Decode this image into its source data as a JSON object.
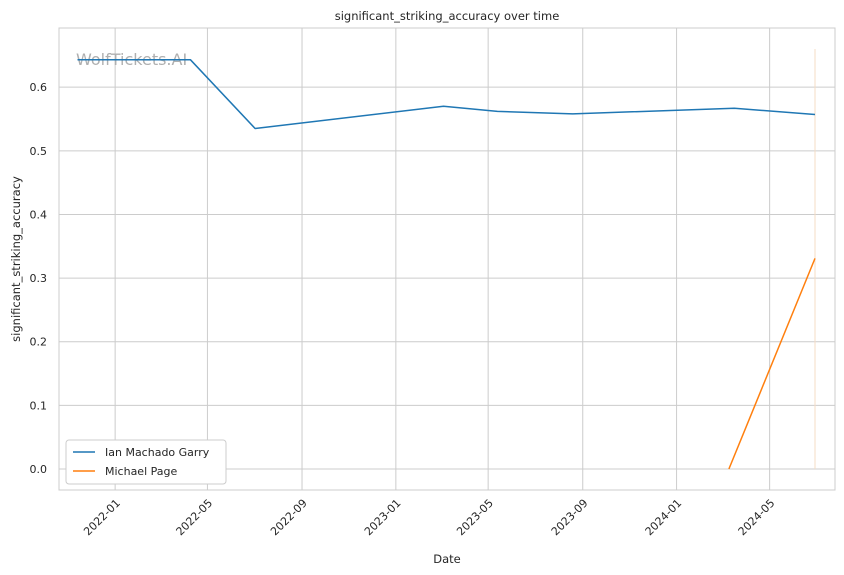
{
  "chart_data": {
    "type": "line",
    "title": "significant_striking_accuracy over time",
    "xlabel": "Date",
    "ylabel": "significant_striking_accuracy",
    "watermark": "WolfTickets.AI",
    "grid": true,
    "legend_position": "lower-left",
    "x_ticks": [
      "2022-01",
      "2022-05",
      "2022-09",
      "2023-01",
      "2023-05",
      "2023-09",
      "2024-01",
      "2024-05"
    ],
    "y_ticks": [
      "0.0",
      "0.1",
      "0.2",
      "0.3",
      "0.4",
      "0.5",
      "0.6"
    ],
    "xlim": [
      "2021-10-20",
      "2024-07-25"
    ],
    "ylim": [
      -0.033,
      0.693
    ],
    "series": [
      {
        "name": "Ian Machado Garry",
        "color": "#1f77b4",
        "x": [
          "2021-11-13",
          "2022-04-09",
          "2022-07-02",
          "2023-03-04",
          "2023-05-13",
          "2023-08-19",
          "2024-03-16",
          "2024-06-29"
        ],
        "values": [
          0.643,
          0.643,
          0.535,
          0.57,
          0.562,
          0.558,
          0.567,
          0.557
        ]
      },
      {
        "name": "Michael Page",
        "color": "#ff7f0e",
        "x": [
          "2024-03-09",
          "2024-06-29"
        ],
        "values": [
          0.0,
          0.331
        ]
      }
    ],
    "reference_line": {
      "x": "2024-06-29",
      "color": "#f5dcc5",
      "y_range": [
        0,
        0.66
      ]
    }
  }
}
